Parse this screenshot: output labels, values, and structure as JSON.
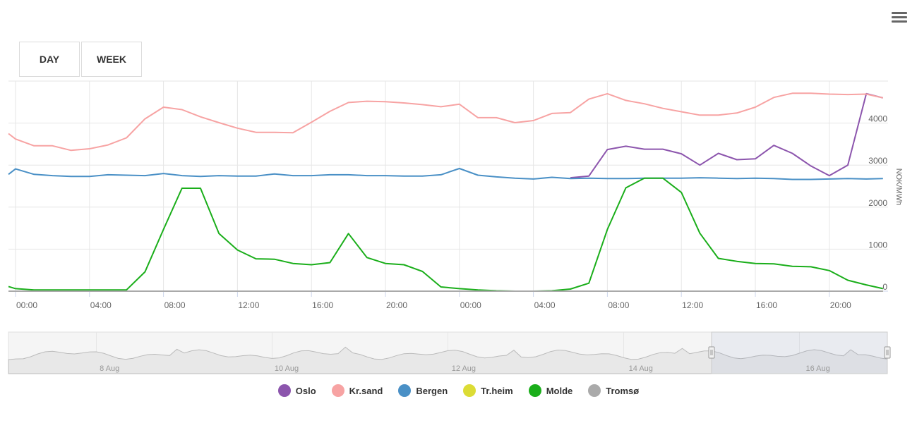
{
  "range_buttons": [
    {
      "label": "DAY"
    },
    {
      "label": "WEEK"
    }
  ],
  "colors": {
    "Oslo": "#8c55ad",
    "Kr.sand": "#f7a3a3",
    "Bergen": "#4a90c6",
    "Tr.heim": "#dcdc35",
    "Molde": "#1aae1a",
    "Tromsø": "#aaaaaa",
    "grid": "#e6e6e6",
    "axis_text": "#666666"
  },
  "chart_data": {
    "type": "line",
    "ylabel": "NOK/MWh",
    "ylim": [
      0,
      5000
    ],
    "y_ticks": [
      "0",
      "1000",
      "2000",
      "3000",
      "4000"
    ],
    "x_tick_labels": [
      "00:00",
      "04:00",
      "08:00",
      "12:00",
      "16:00",
      "20:00",
      "00:00",
      "04:00",
      "08:00",
      "12:00",
      "16:00",
      "20:00"
    ],
    "x_hours": [
      -0.4,
      0,
      1,
      2,
      3,
      4,
      5,
      6,
      7,
      8,
      9,
      10,
      11,
      12,
      13,
      14,
      15,
      16,
      17,
      18,
      19,
      20,
      21,
      22,
      23,
      24,
      25,
      26,
      27,
      28,
      29,
      30,
      31,
      32,
      33,
      34,
      35,
      36,
      37,
      38,
      39,
      40,
      41,
      42,
      43,
      44,
      45,
      46,
      46.9
    ],
    "series": [
      {
        "name": "Oslo",
        "values": [
          null,
          null,
          null,
          null,
          null,
          null,
          null,
          null,
          null,
          null,
          null,
          null,
          null,
          null,
          null,
          null,
          null,
          null,
          null,
          null,
          null,
          null,
          null,
          null,
          null,
          null,
          null,
          null,
          null,
          null,
          null,
          2700,
          2740,
          3370,
          3450,
          3380,
          3380,
          3270,
          3000,
          3280,
          3130,
          3150,
          3470,
          3280,
          2980,
          2750,
          3000,
          4700,
          4600
        ]
      },
      {
        "name": "Kr.sand",
        "values": [
          3750,
          3620,
          3460,
          3460,
          3350,
          3390,
          3480,
          3650,
          4100,
          4380,
          4320,
          4150,
          4010,
          3880,
          3780,
          3780,
          3770,
          4020,
          4280,
          4490,
          4520,
          4510,
          4480,
          4440,
          4390,
          4450,
          4130,
          4130,
          4010,
          4060,
          4230,
          4250,
          4570,
          4700,
          4540,
          4460,
          4350,
          4270,
          4190,
          4190,
          4240,
          4380,
          4610,
          4710,
          4710,
          4690,
          4680,
          4690,
          4600
        ]
      },
      {
        "name": "Bergen",
        "values": [
          2780,
          2910,
          2780,
          2750,
          2730,
          2730,
          2770,
          2760,
          2750,
          2800,
          2750,
          2730,
          2750,
          2740,
          2740,
          2790,
          2750,
          2750,
          2770,
          2770,
          2750,
          2750,
          2740,
          2740,
          2770,
          2920,
          2760,
          2720,
          2690,
          2670,
          2710,
          2680,
          2690,
          2680,
          2680,
          2690,
          2690,
          2690,
          2700,
          2690,
          2680,
          2690,
          2680,
          2660,
          2660,
          2670,
          2680,
          2670,
          2680
        ]
      },
      {
        "name": "Tr.heim",
        "values": [
          0,
          0,
          0,
          0,
          0,
          0,
          0,
          0,
          0,
          0,
          0,
          0,
          0,
          0,
          0,
          0,
          0,
          0,
          0,
          0,
          0,
          0,
          0,
          0,
          0,
          0,
          0,
          0,
          0,
          0,
          0,
          0,
          0,
          0,
          0,
          0,
          0,
          0,
          0,
          0,
          0,
          0,
          0,
          0,
          0,
          0,
          0,
          0,
          0
        ]
      },
      {
        "name": "Molde",
        "values": [
          110,
          60,
          30,
          30,
          30,
          30,
          30,
          30,
          460,
          1470,
          2450,
          2450,
          1370,
          980,
          770,
          760,
          660,
          630,
          680,
          1370,
          800,
          660,
          630,
          470,
          100,
          60,
          30,
          10,
          0,
          0,
          10,
          50,
          190,
          1470,
          2460,
          2690,
          2690,
          2350,
          1380,
          780,
          710,
          660,
          650,
          590,
          580,
          490,
          260,
          150,
          60
        ]
      },
      {
        "name": "Tromsø",
        "values": [
          0,
          0,
          0,
          0,
          0,
          0,
          0,
          0,
          0,
          0,
          0,
          0,
          0,
          0,
          0,
          0,
          0,
          0,
          0,
          0,
          0,
          0,
          0,
          0,
          0,
          0,
          0,
          0,
          0,
          0,
          0,
          0,
          0,
          0,
          0,
          0,
          0,
          0,
          0,
          0,
          0,
          0,
          0,
          0,
          0,
          0,
          0,
          0,
          0
        ]
      }
    ],
    "navigator": {
      "date_labels": [
        "8 Aug",
        "10 Aug",
        "12 Aug",
        "14 Aug",
        "16 Aug"
      ],
      "selected_fraction": [
        0.8,
        1.0
      ]
    },
    "legend_position": "bottom-center",
    "grid": true
  }
}
